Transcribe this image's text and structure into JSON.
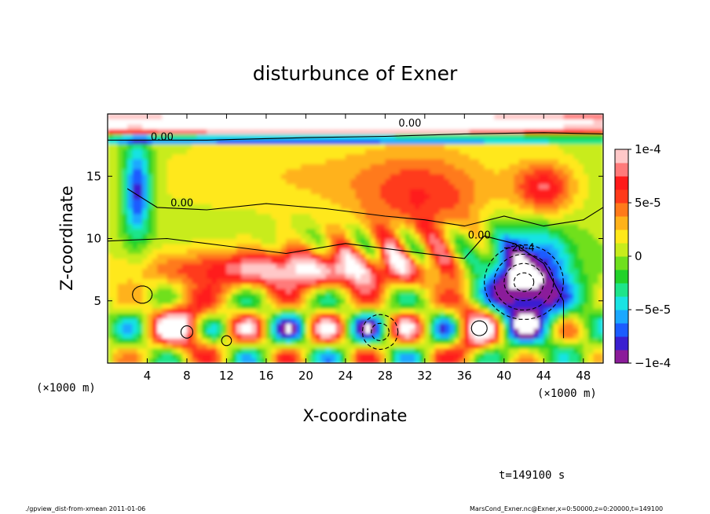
{
  "chart_data": {
    "type": "heatmap",
    "title": "disturbunce of Exner",
    "xlabel": "X-coordinate",
    "ylabel": "Z-coordinate",
    "x_unit": "(×1000 m)",
    "x_unit_right": "(×1000 m)",
    "xlim": [
      0,
      50
    ],
    "ylim": [
      0,
      20
    ],
    "x_ticks": [
      4,
      8,
      12,
      16,
      20,
      24,
      28,
      32,
      36,
      40,
      44,
      48
    ],
    "x_tick_labels": [
      "4",
      "8",
      "12",
      "16",
      "20",
      "24",
      "28",
      "32",
      "36",
      "40",
      "44",
      "48"
    ],
    "y_ticks": [
      5,
      10,
      15
    ],
    "y_tick_labels": [
      "5",
      "10",
      "15"
    ],
    "colorbar": {
      "range": [
        -0.0001,
        0.0001
      ],
      "ticks": [
        0.0001,
        5e-05,
        0,
        -5e-05,
        -0.0001
      ],
      "tick_labels": [
        "1e-4",
        "5e-5",
        "0",
        "−5e-5",
        "−1e-4"
      ],
      "colors": [
        "#8b1c9a",
        "#3a1fd0",
        "#1b5cff",
        "#1aa8ff",
        "#19e3e3",
        "#1ee58a",
        "#22d22a",
        "#6fe01e",
        "#c8ec1c",
        "#ffe81a",
        "#ffb21a",
        "#ff7a1a",
        "#ff3a1a",
        "#ff1a1a",
        "#ff7a7a",
        "#ffc8c8"
      ]
    },
    "contour_labels": [
      {
        "x": 5.5,
        "y": 17.9,
        "text": "0.00"
      },
      {
        "x": 7.5,
        "y": 12.6,
        "text": "0.00"
      },
      {
        "x": 30.5,
        "y": 19.0,
        "text": "0.00"
      },
      {
        "x": 37.5,
        "y": 10.0,
        "text": "0.00"
      },
      {
        "x": 41.5,
        "y": 9.0,
        "text": "−2e-4"
      }
    ],
    "time_label": "t=149100 s"
  },
  "footer": {
    "left": "./gpview_dist-from-xmean  2011-01-06",
    "right": "MarsCond_Exner.nc@Exner,x=0:50000,z=0:20000,t=149100"
  }
}
